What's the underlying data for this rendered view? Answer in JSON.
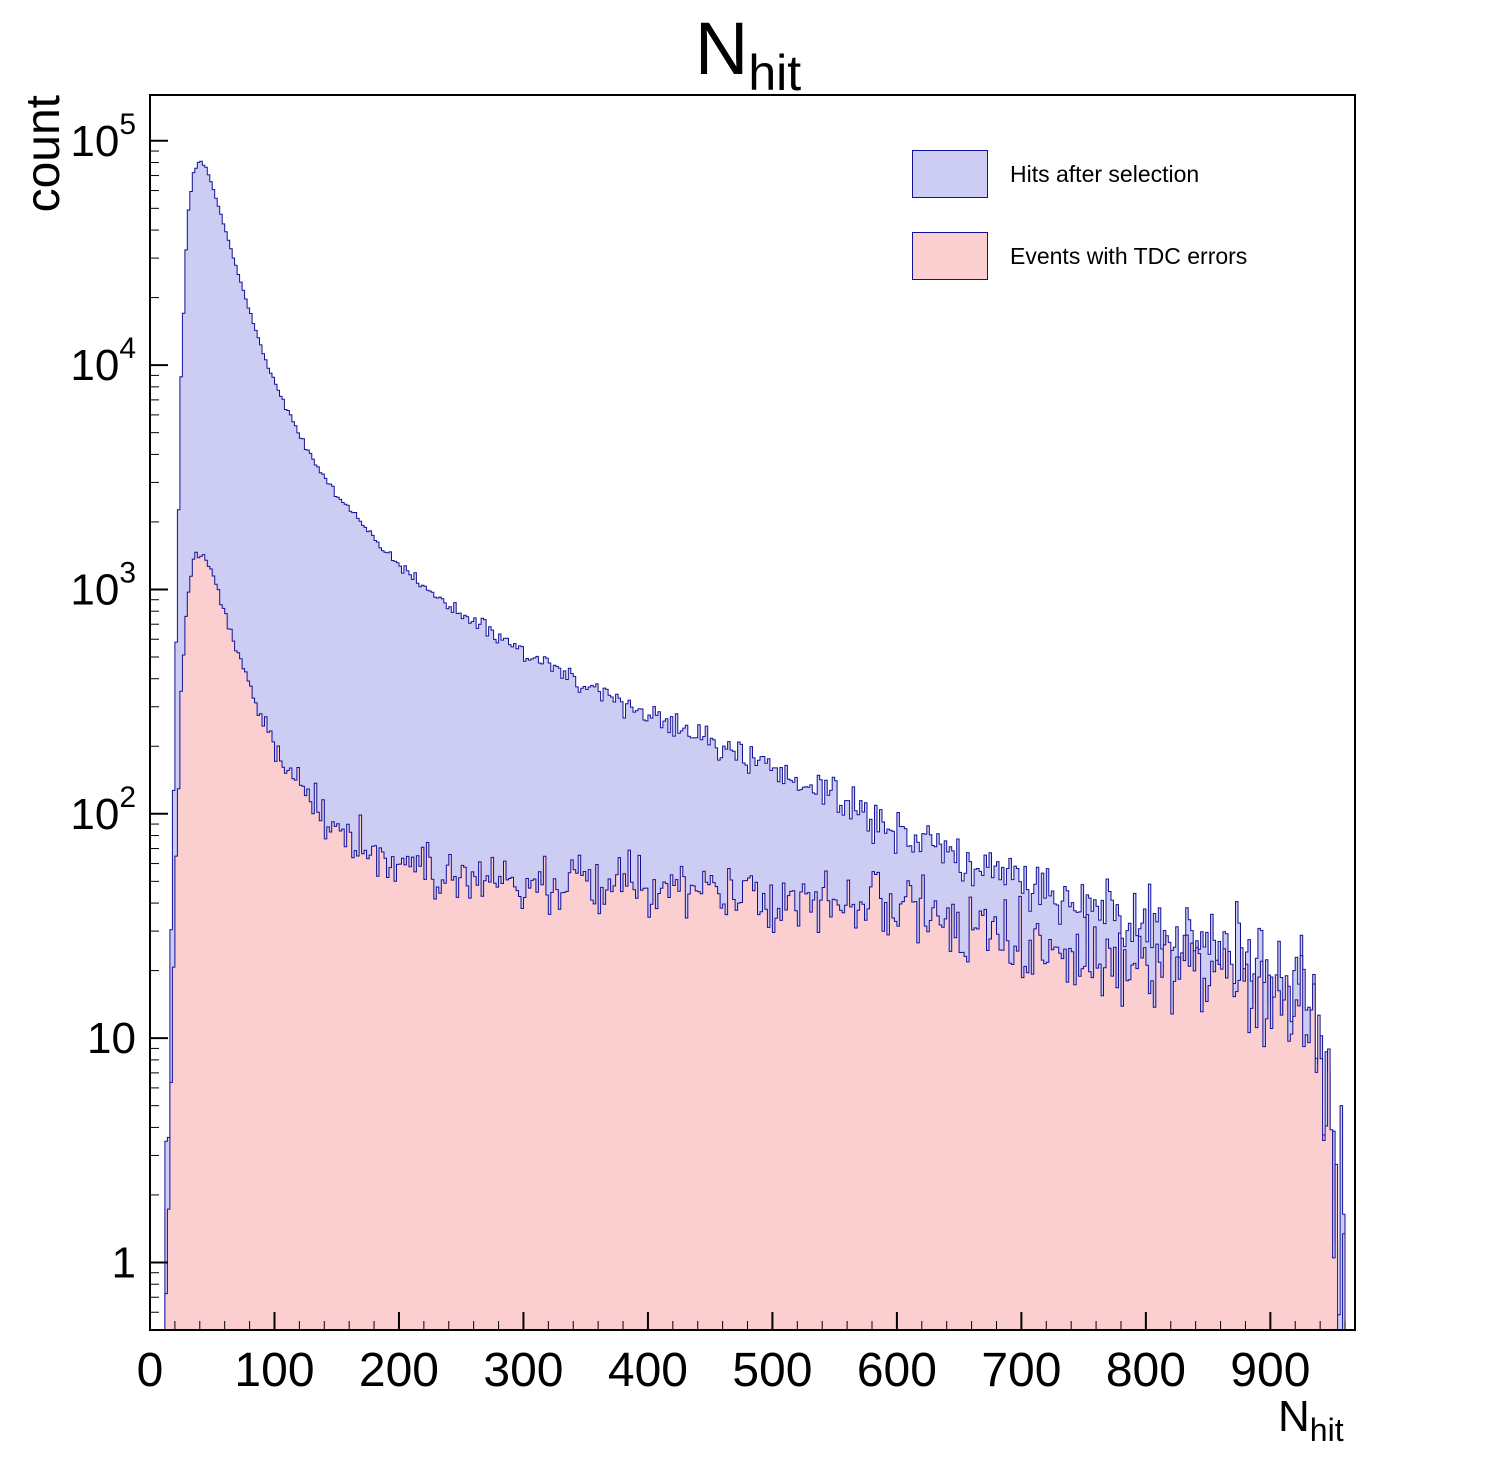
{
  "chart_data": {
    "type": "histogram",
    "title_main": "N",
    "title_sub": "hit",
    "ylabel": "count",
    "xlabel_main": "N",
    "xlabel_sub": "hit",
    "y_log": true,
    "xlim": [
      0,
      968
    ],
    "ylim": [
      0.5,
      160000
    ],
    "x_major_ticks": [
      0,
      100,
      200,
      300,
      400,
      500,
      600,
      700,
      800,
      900
    ],
    "x_minor_step": 20,
    "y_major_ticks": [
      1,
      10,
      100,
      1000,
      10000,
      100000
    ],
    "bin_width": 2,
    "background": "#ffffff",
    "frame_color": "#000000",
    "legend_position": "top-right",
    "x_control": [
      12,
      15,
      20,
      25,
      30,
      35,
      40,
      45,
      50,
      55,
      60,
      65,
      70,
      75,
      80,
      85,
      90,
      95,
      100,
      110,
      120,
      130,
      140,
      150,
      160,
      170,
      180,
      190,
      200,
      220,
      240,
      260,
      280,
      300,
      320,
      340,
      360,
      380,
      400,
      420,
      440,
      460,
      480,
      500,
      520,
      540,
      560,
      580,
      600,
      620,
      640,
      660,
      680,
      700,
      720,
      740,
      760,
      780,
      800,
      820,
      840,
      860,
      880,
      900,
      910,
      920,
      930,
      940,
      950,
      955,
      960
    ],
    "series": [
      {
        "name": "Hits after selection",
        "fill": "#cdcdf4",
        "line": "#11119b",
        "values": [
          0.8,
          5,
          300,
          9000,
          45000,
          72000,
          82000,
          76000,
          63000,
          51000,
          41000,
          33000,
          26500,
          21500,
          17500,
          14300,
          11800,
          9900,
          8400,
          6300,
          4900,
          3900,
          3200,
          2650,
          2250,
          1950,
          1680,
          1470,
          1300,
          1030,
          850,
          710,
          610,
          525,
          455,
          400,
          352,
          312,
          278,
          248,
          221,
          197,
          176,
          157,
          139,
          123,
          109,
          97,
          86,
          77,
          69,
          62,
          56,
          50,
          46,
          42,
          38,
          35,
          32,
          29,
          27,
          25,
          23,
          21,
          20,
          18,
          16,
          11,
          4,
          1.5,
          0.6
        ]
      },
      {
        "name": "Events with TDC errors",
        "fill": "#fbcfcf",
        "line": "#11119b",
        "values": [
          0.7,
          2,
          40,
          350,
          950,
          1380,
          1500,
          1390,
          1160,
          960,
          790,
          650,
          540,
          450,
          378,
          318,
          270,
          233,
          203,
          160,
          131,
          111,
          97,
          87,
          79,
          73,
          68,
          64,
          61,
          56,
          53,
          51,
          50,
          49,
          49,
          48,
          48,
          47,
          47,
          46,
          46,
          45,
          45,
          44,
          43,
          42,
          41,
          40,
          38,
          36,
          34,
          32,
          30,
          29,
          27,
          26,
          24,
          23,
          22,
          21,
          20,
          19,
          18,
          17,
          16,
          15,
          13,
          9,
          3.5,
          1.2,
          0.5
        ]
      }
    ]
  }
}
